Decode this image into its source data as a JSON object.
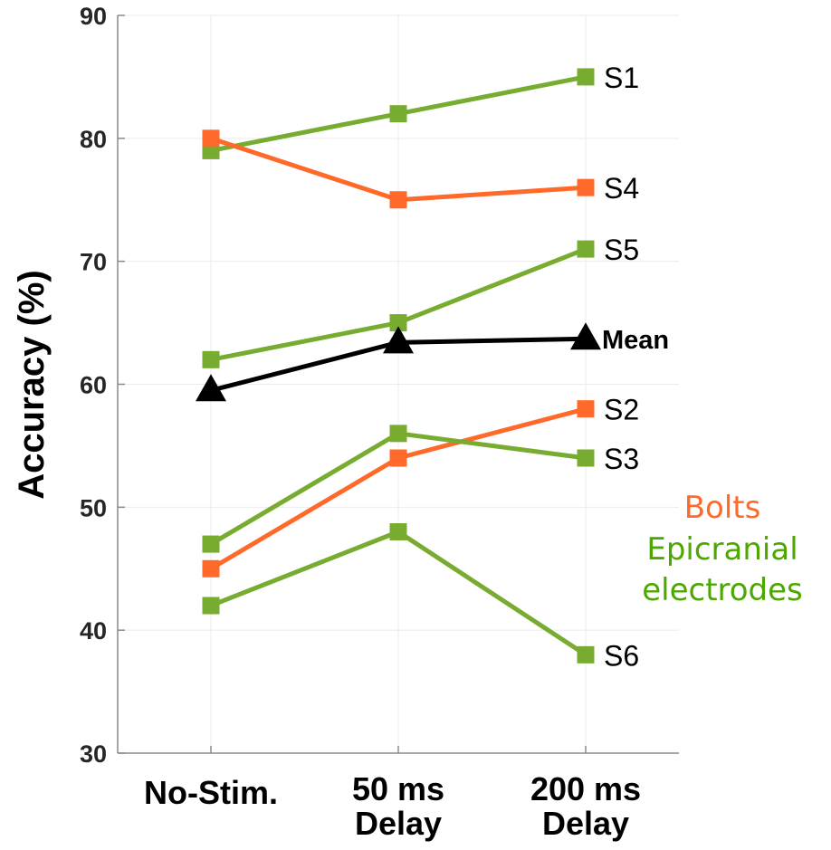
{
  "chart_data": {
    "type": "line",
    "title": "",
    "xlabel": "",
    "ylabel": "Accuracy (%)",
    "ylim": [
      30,
      90
    ],
    "yticks": [
      30,
      40,
      50,
      60,
      70,
      80,
      90
    ],
    "categories": [
      [
        "No-Stim."
      ],
      [
        "50 ms",
        "Delay"
      ],
      [
        "200 ms",
        "Delay"
      ]
    ],
    "grid": true,
    "series": [
      {
        "name": "S1",
        "group": "Epicranial electrodes",
        "color": "#77AC30",
        "marker": "square",
        "values": [
          79,
          82,
          85
        ]
      },
      {
        "name": "S4",
        "group": "Bolts",
        "color": "#FF6929",
        "marker": "square",
        "values": [
          80,
          75,
          76
        ]
      },
      {
        "name": "S5",
        "group": "Epicranial electrodes",
        "color": "#77AC30",
        "marker": "square",
        "values": [
          62,
          65,
          71
        ]
      },
      {
        "name": "Mean",
        "group": "Mean",
        "color": "#000000",
        "marker": "triangle",
        "values": [
          59.5,
          63.4,
          63.7
        ]
      },
      {
        "name": "S2",
        "group": "Bolts",
        "color": "#FF6929",
        "marker": "square",
        "values": [
          45,
          54,
          58
        ]
      },
      {
        "name": "S3",
        "group": "Epicranial electrodes",
        "color": "#77AC30",
        "marker": "square",
        "values": [
          47,
          56,
          54
        ]
      },
      {
        "name": "S6",
        "group": "Epicranial electrodes",
        "color": "#77AC30",
        "marker": "square",
        "values": [
          42,
          48,
          38
        ]
      }
    ],
    "legend": {
      "placement": "right",
      "entries": [
        {
          "label": "Bolts",
          "color": "#FF6929"
        },
        {
          "label": "Epicranial electrodes",
          "lines": [
            "Epicranial",
            "electrodes"
          ],
          "color": "#4CA800"
        }
      ]
    }
  }
}
